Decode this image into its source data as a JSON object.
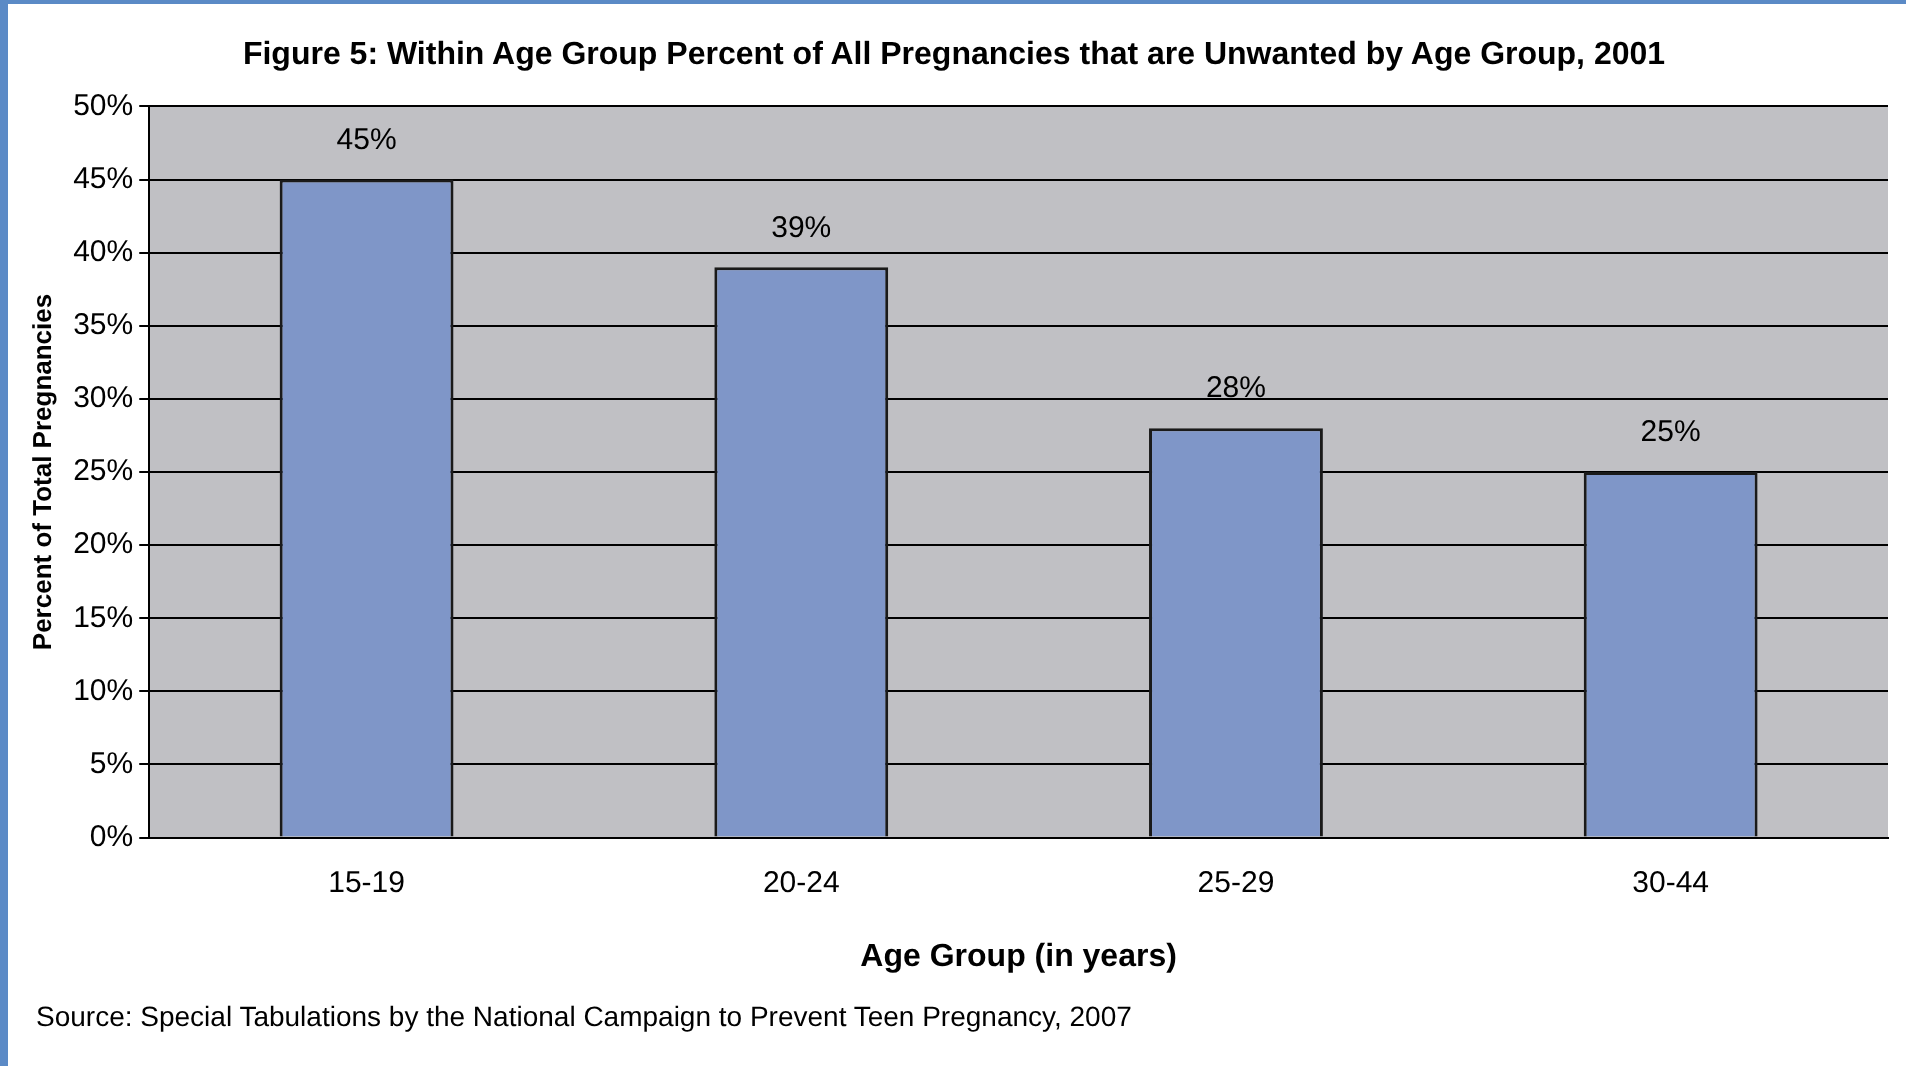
{
  "chart_data": {
    "type": "bar",
    "title": "Figure 5: Within Age Group Percent of All Pregnancies that are Unwanted by Age Group, 2001",
    "xlabel": "Age Group (in years)",
    "ylabel": "Percent of Total Pregnancies",
    "categories": [
      "15-19",
      "20-24",
      "25-29",
      "30-44"
    ],
    "values": [
      45,
      39,
      28,
      25
    ],
    "color": "#7f96c8",
    "value_labels": [
      "45%",
      "39%",
      "28%",
      "25%"
    ],
    "ylim": [
      0,
      50
    ],
    "yticks": [
      {
        "value": 0,
        "label": "0%"
      },
      {
        "value": 5,
        "label": "5%"
      },
      {
        "value": 10,
        "label": "10%"
      },
      {
        "value": 15,
        "label": "15%"
      },
      {
        "value": 20,
        "label": "20%"
      },
      {
        "value": 25,
        "label": "25%"
      },
      {
        "value": 30,
        "label": "30%"
      },
      {
        "value": 35,
        "label": "35%"
      },
      {
        "value": 40,
        "label": "40%"
      },
      {
        "value": 45,
        "label": "45%"
      },
      {
        "value": 50,
        "label": "50%"
      }
    ],
    "grid": "y",
    "legend": false,
    "annotations": [
      "Source: Special Tabulations by the National Campaign to Prevent Teen Pregnancy, 2007"
    ]
  }
}
